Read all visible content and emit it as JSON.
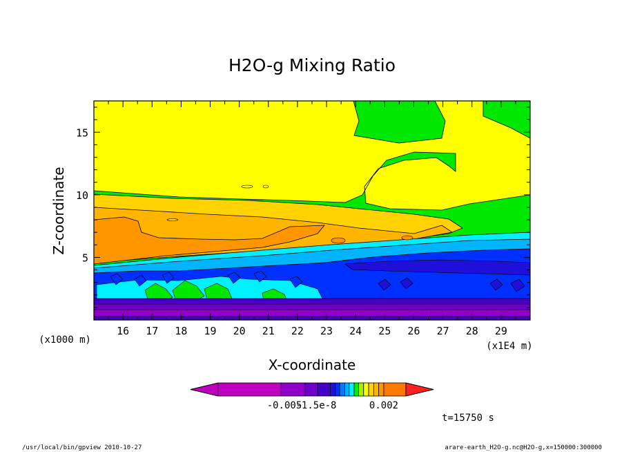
{
  "chart_data": {
    "type": "heatmap",
    "title": "H2O-g Mixing Ratio",
    "xlabel": "X-coordinate",
    "ylabel": "Z-coordinate",
    "x_unit_label": "(x1E4 m)",
    "y_unit_label": "(x1000 m)",
    "x_ticks": [
      "16",
      "17",
      "18",
      "19",
      "20",
      "21",
      "22",
      "23",
      "24",
      "25",
      "26",
      "27",
      "28",
      "29"
    ],
    "x_tick_values": [
      16,
      17,
      18,
      19,
      20,
      21,
      22,
      23,
      24,
      25,
      26,
      27,
      28,
      29
    ],
    "y_ticks": [
      "5",
      "10",
      "15"
    ],
    "y_tick_values": [
      5,
      10,
      15
    ],
    "xlim": [
      15.0,
      30.0
    ],
    "ylim": [
      0,
      17.5
    ],
    "colorbar_labels": [
      "-0.005",
      "-1.5e-8",
      "0.002"
    ],
    "colorbar_colors": [
      "#c000c0",
      "#c000c0",
      "#c000c0",
      "#9000c8",
      "#7000c8",
      "#4400c8",
      "#1e10d8",
      "#0030ff",
      "#0078ff",
      "#00b4ff",
      "#00f0ff",
      "#00f000",
      "#a8f000",
      "#ffff00",
      "#ffd200",
      "#ffb400",
      "#ff9600",
      "#ff7800"
    ],
    "colorbar_right_arrow": "#ff2020",
    "region_colors": {
      "top": "#00e800",
      "upper_yellow": "#ffff00",
      "moist_light": "#ffd200",
      "moist_mid": "#ffb400",
      "moist_core": "#ff9600",
      "cyan": "#00f0ff",
      "light_blue": "#00b4ff",
      "blue": "#0030ff",
      "deep_blue": "#1e10d8",
      "low_violet": "#7000c8",
      "bottom_purple": "#9000c8"
    }
  },
  "annotation": {
    "time": "t=15750 s"
  },
  "footer": {
    "left": "/usr/local/bin/gpview  2010-10-27",
    "right": "arare-earth_H2O-g.nc@H2O-g,x=150000:300000"
  }
}
